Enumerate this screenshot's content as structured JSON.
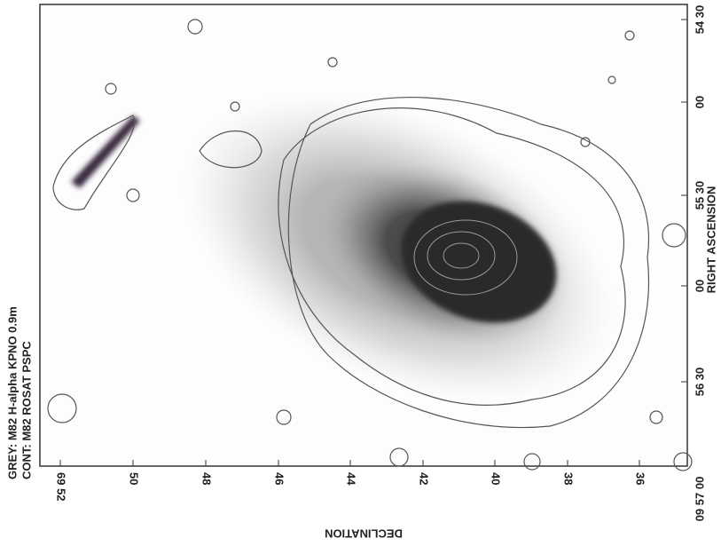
{
  "legend": [
    "GREY: M82 H-alpha KPNO 0.9m",
    "CONT: M82 ROSAT PSPC"
  ],
  "x_axis": {
    "title": "DECLINATION",
    "ticks": [
      "69 52",
      "50",
      "48",
      "46",
      "44",
      "42",
      "40",
      "38",
      "36"
    ]
  },
  "y_axis": {
    "title": "RIGHT ASCENSION",
    "ticks": [
      "54 30",
      "00",
      "55 30",
      "00",
      "56 30",
      "09 57 00"
    ]
  }
}
